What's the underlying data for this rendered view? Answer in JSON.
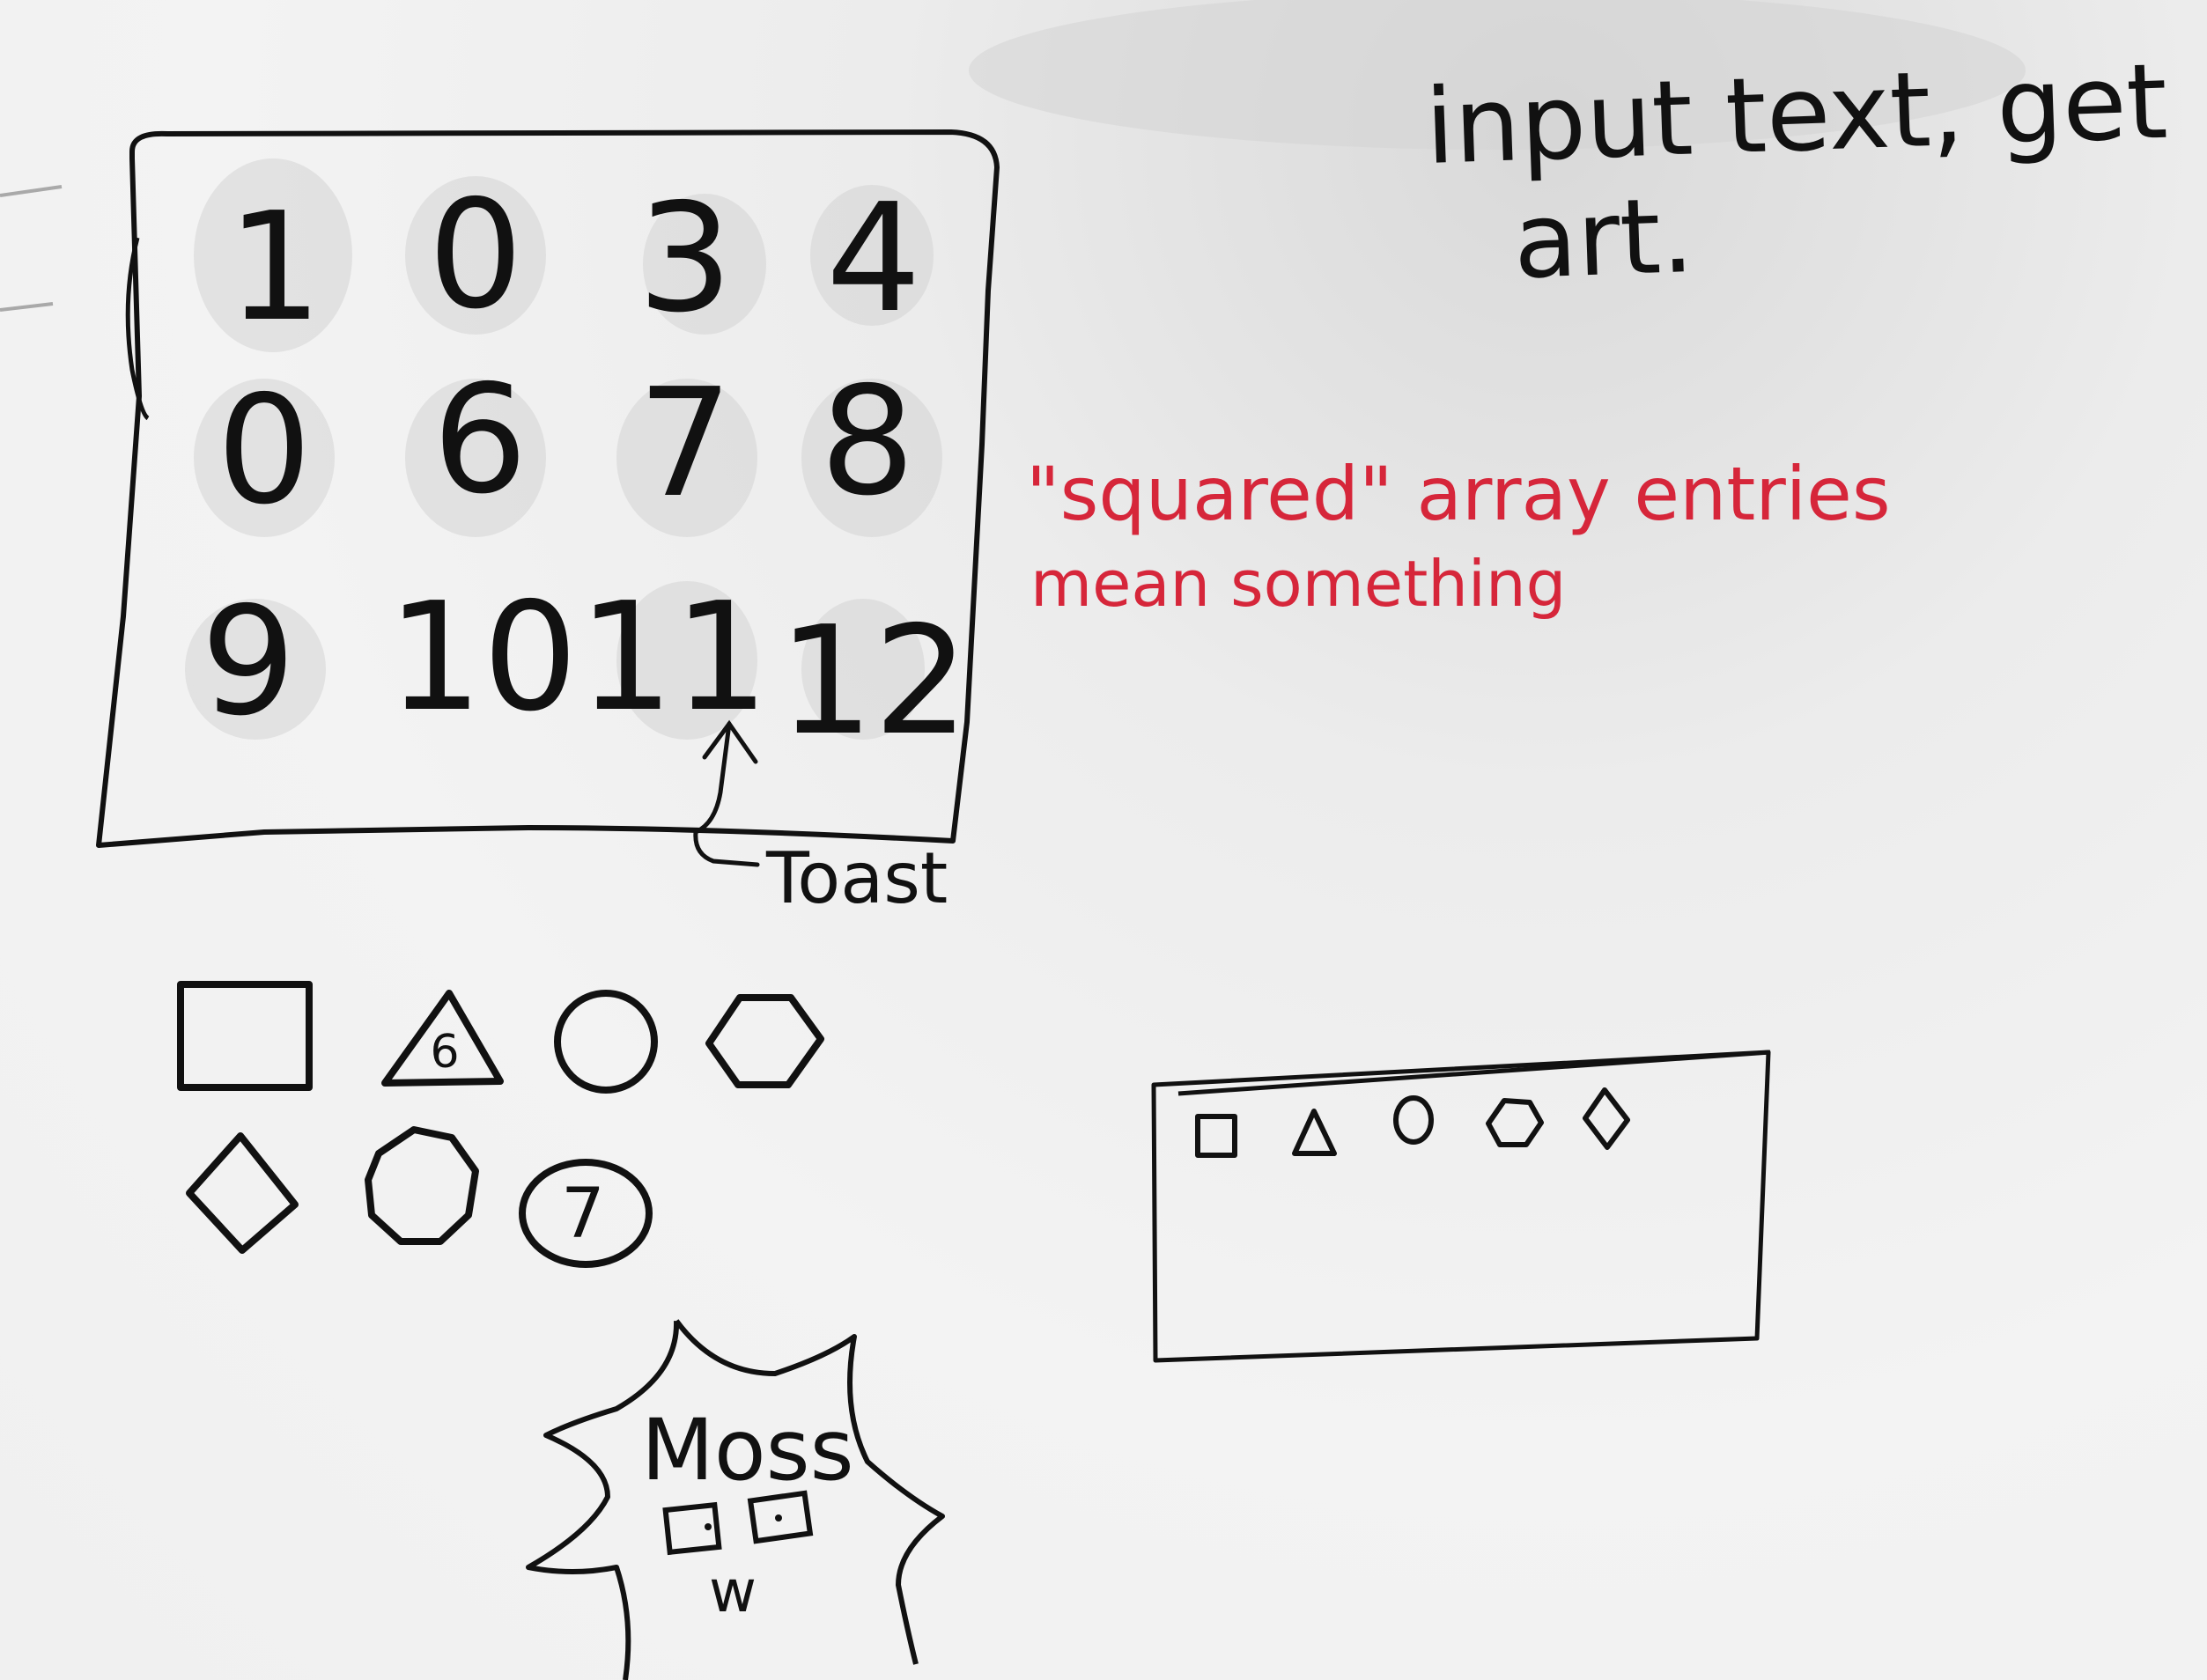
{
  "header": {
    "line1": "input text, get",
    "line2": "art."
  },
  "grid": {
    "row1": [
      "1",
      "0",
      "3",
      "4"
    ],
    "row2": [
      "0",
      "6",
      "7",
      "8"
    ],
    "row3": [
      "9",
      "10",
      "11",
      "12"
    ]
  },
  "annotations": {
    "toast_label": "Toast",
    "red_line1": "\"squared\" array entries",
    "red_line2": "mean something",
    "ink_black": "#111111",
    "ink_red": "#d6263a"
  },
  "shapes": {
    "triangle_number": "6",
    "circle_number": "7"
  },
  "mascot": {
    "name": "Moss",
    "mouth": "w"
  }
}
